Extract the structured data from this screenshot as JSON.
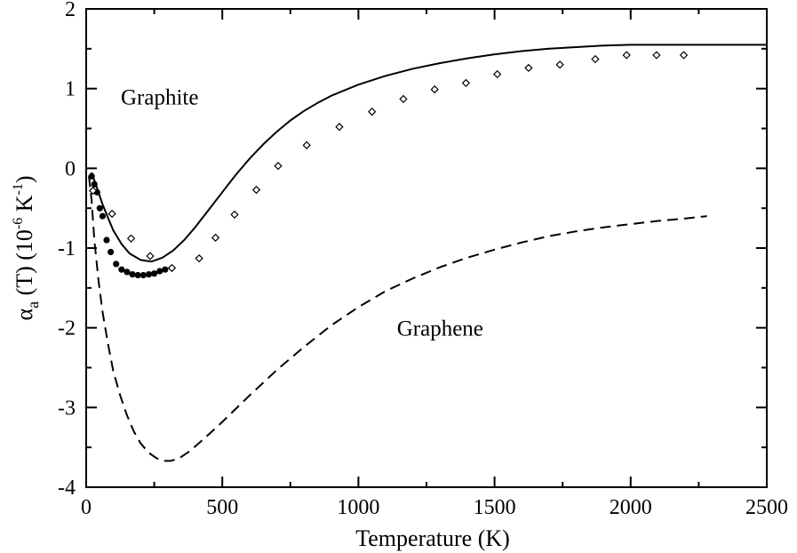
{
  "chart_data": {
    "type": "line",
    "xlabel": "Temperature (K)",
    "ylabel": {
      "alpha": "α",
      "sub": "a",
      "mid": " (T) (10",
      "exp1": "-6",
      "k": " K",
      "exp2": "-1",
      "close": ")"
    },
    "xlim": [
      0,
      2500
    ],
    "ylim": [
      -4,
      2
    ],
    "x_ticks": [
      0,
      500,
      1000,
      1500,
      2000,
      2500
    ],
    "y_ticks": [
      -4,
      -3,
      -2,
      -1,
      0,
      1,
      2
    ],
    "annotations": [
      {
        "text": "Graphite",
        "x": 270,
        "y": 0.8
      },
      {
        "text": "Graphene",
        "x": 1300,
        "y": -2.1
      }
    ],
    "series": [
      {
        "style": "solid",
        "points": [
          [
            20,
            -0.05
          ],
          [
            40,
            -0.25
          ],
          [
            60,
            -0.45
          ],
          [
            80,
            -0.62
          ],
          [
            100,
            -0.78
          ],
          [
            130,
            -0.95
          ],
          [
            160,
            -1.07
          ],
          [
            200,
            -1.15
          ],
          [
            240,
            -1.17
          ],
          [
            280,
            -1.12
          ],
          [
            320,
            -1.03
          ],
          [
            360,
            -0.9
          ],
          [
            400,
            -0.74
          ],
          [
            450,
            -0.52
          ],
          [
            500,
            -0.3
          ],
          [
            550,
            -0.08
          ],
          [
            600,
            0.12
          ],
          [
            650,
            0.3
          ],
          [
            700,
            0.46
          ],
          [
            750,
            0.6
          ],
          [
            800,
            0.72
          ],
          [
            850,
            0.82
          ],
          [
            900,
            0.91
          ],
          [
            1000,
            1.05
          ],
          [
            1100,
            1.16
          ],
          [
            1200,
            1.25
          ],
          [
            1300,
            1.32
          ],
          [
            1400,
            1.38
          ],
          [
            1500,
            1.43
          ],
          [
            1600,
            1.47
          ],
          [
            1700,
            1.5
          ],
          [
            1800,
            1.52
          ],
          [
            1900,
            1.54
          ],
          [
            2000,
            1.55
          ],
          [
            2100,
            1.55
          ],
          [
            2200,
            1.55
          ],
          [
            2300,
            1.55
          ],
          [
            2400,
            1.55
          ],
          [
            2500,
            1.55
          ]
        ]
      },
      {
        "style": "dashed",
        "points": [
          [
            10,
            -0.1
          ],
          [
            20,
            -0.4
          ],
          [
            30,
            -0.9
          ],
          [
            45,
            -1.4
          ],
          [
            60,
            -1.8
          ],
          [
            80,
            -2.2
          ],
          [
            100,
            -2.55
          ],
          [
            125,
            -2.85
          ],
          [
            150,
            -3.1
          ],
          [
            175,
            -3.3
          ],
          [
            200,
            -3.45
          ],
          [
            230,
            -3.57
          ],
          [
            260,
            -3.64
          ],
          [
            290,
            -3.67
          ],
          [
            310,
            -3.67
          ],
          [
            340,
            -3.64
          ],
          [
            380,
            -3.55
          ],
          [
            430,
            -3.4
          ],
          [
            500,
            -3.18
          ],
          [
            600,
            -2.85
          ],
          [
            700,
            -2.53
          ],
          [
            800,
            -2.24
          ],
          [
            900,
            -1.97
          ],
          [
            1000,
            -1.74
          ],
          [
            1100,
            -1.54
          ],
          [
            1200,
            -1.38
          ],
          [
            1300,
            -1.24
          ],
          [
            1400,
            -1.12
          ],
          [
            1500,
            -1.02
          ],
          [
            1600,
            -0.93
          ],
          [
            1700,
            -0.85
          ],
          [
            1800,
            -0.79
          ],
          [
            1900,
            -0.74
          ],
          [
            2000,
            -0.7
          ],
          [
            2100,
            -0.66
          ],
          [
            2200,
            -0.63
          ],
          [
            2280,
            -0.6
          ]
        ]
      },
      {
        "style": "filled-circles",
        "points": [
          [
            20,
            -0.1
          ],
          [
            30,
            -0.2
          ],
          [
            40,
            -0.3
          ],
          [
            50,
            -0.5
          ],
          [
            60,
            -0.6
          ],
          [
            75,
            -0.9
          ],
          [
            90,
            -1.05
          ],
          [
            110,
            -1.2
          ],
          [
            130,
            -1.27
          ],
          [
            150,
            -1.3
          ],
          [
            170,
            -1.33
          ],
          [
            190,
            -1.34
          ],
          [
            210,
            -1.34
          ],
          [
            230,
            -1.33
          ],
          [
            250,
            -1.32
          ],
          [
            270,
            -1.29
          ],
          [
            290,
            -1.27
          ]
        ]
      },
      {
        "style": "open-diamonds",
        "points": [
          [
            25,
            -0.28
          ],
          [
            95,
            -0.57
          ],
          [
            165,
            -0.88
          ],
          [
            235,
            -1.1
          ],
          [
            315,
            -1.25
          ],
          [
            415,
            -1.13
          ],
          [
            475,
            -0.87
          ],
          [
            545,
            -0.58
          ],
          [
            625,
            -0.27
          ],
          [
            705,
            0.03
          ],
          [
            810,
            0.29
          ],
          [
            930,
            0.52
          ],
          [
            1050,
            0.71
          ],
          [
            1165,
            0.87
          ],
          [
            1280,
            0.99
          ],
          [
            1395,
            1.07
          ],
          [
            1510,
            1.18
          ],
          [
            1625,
            1.26
          ],
          [
            1740,
            1.3
          ],
          [
            1870,
            1.37
          ],
          [
            1985,
            1.42
          ],
          [
            2095,
            1.42
          ],
          [
            2195,
            1.42
          ]
        ]
      }
    ]
  }
}
